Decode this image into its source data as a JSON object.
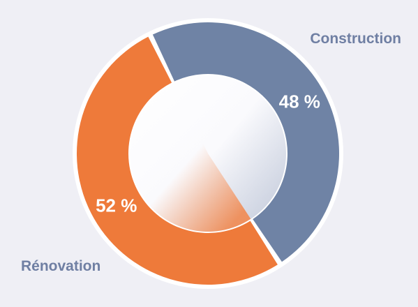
{
  "chart_data": {
    "type": "pie",
    "categories": [
      "Construction",
      "Rénovation"
    ],
    "values": [
      48,
      52
    ],
    "value_labels": [
      "48 %",
      "52 %"
    ],
    "colors": [
      "#6f83a5",
      "#ee7a3a"
    ],
    "donut": true
  }
}
